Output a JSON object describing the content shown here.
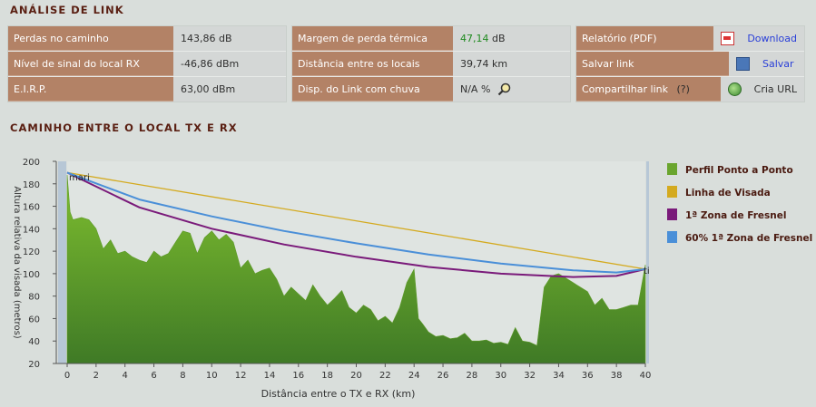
{
  "analise": {
    "title": "ANÁLISE DE LINK",
    "col1": [
      {
        "label": "Perdas no caminho",
        "value": "143,86 dB"
      },
      {
        "label": "Nível de sinal do local RX",
        "value": "-46,86 dBm"
      },
      {
        "label": "E.I.R.P.",
        "value": "63,00 dBm"
      }
    ],
    "col2": [
      {
        "label": "Margem de perda térmica",
        "value_num": "47,14",
        "value_unit": "dB"
      },
      {
        "label": "Distância entre os locais",
        "value": "39,74 km"
      },
      {
        "label": "Disp. do Link com chuva",
        "value": "N/A %"
      }
    ],
    "col3": [
      {
        "label": "Relatório (PDF)",
        "action": "Download"
      },
      {
        "label": "Salvar link",
        "action": "Salvar"
      },
      {
        "label": "Compartilhar link",
        "help": "(?)",
        "action": "Cria URL"
      }
    ]
  },
  "caminho": {
    "title": "CAMINHO ENTRE O LOCAL TX E RX"
  },
  "chart_data": {
    "type": "area",
    "xlabel": "Distância entre o TX e RX (km)",
    "ylabel": "Altura relativa da visada (metros)",
    "xlim": [
      0,
      40
    ],
    "ylim": [
      20,
      200
    ],
    "xticks": [
      "0",
      "2",
      "4",
      "6",
      "8",
      "10",
      "12",
      "14",
      "16",
      "18",
      "20",
      "22",
      "24",
      "26",
      "28",
      "30",
      "32",
      "34",
      "36",
      "38",
      "40"
    ],
    "yticks": [
      "20",
      "40",
      "60",
      "80",
      "100",
      "120",
      "140",
      "160",
      "180",
      "200"
    ],
    "tx_label": "mari",
    "rx_label": "ti",
    "legend": [
      {
        "name": "Perfil Ponto a Ponto",
        "color": "#6aa52e"
      },
      {
        "name": "Linha de Visada",
        "color": "#d4aa1f"
      },
      {
        "name": "1ª Zona de Fresnel",
        "color": "#7a1a7a"
      },
      {
        "name": "60% 1ª Zona de Fresnel",
        "color": "#4a8fd8"
      }
    ],
    "series": [
      {
        "name": "Perfil Ponto a Ponto",
        "x": [
          0,
          0.2,
          0.4,
          1,
          1.5,
          2,
          2.5,
          3,
          3.5,
          4,
          4.5,
          5,
          5.5,
          6,
          6.5,
          7,
          7.5,
          8,
          8.5,
          9,
          9.5,
          10,
          10.5,
          11,
          11.5,
          12,
          12.5,
          13,
          13.5,
          14,
          14.5,
          15,
          15.5,
          16,
          16.5,
          17,
          17.5,
          18,
          18.5,
          19,
          19.5,
          20,
          20.5,
          21,
          21.5,
          22,
          22.5,
          23,
          23.5,
          24,
          24.3,
          24.6,
          25,
          25.5,
          26,
          26.5,
          27,
          27.5,
          28,
          28.5,
          29,
          29.5,
          30,
          30.5,
          31,
          31.5,
          32,
          32.5,
          33,
          33.5,
          34,
          34.5,
          35,
          35.5,
          36,
          36.5,
          37,
          37.5,
          38,
          38.5,
          39,
          39.5,
          40
        ],
        "y": [
          188,
          155,
          148,
          150,
          148,
          140,
          122,
          130,
          118,
          120,
          115,
          112,
          110,
          120,
          115,
          118,
          128,
          138,
          136,
          118,
          132,
          138,
          130,
          135,
          128,
          105,
          112,
          100,
          103,
          105,
          95,
          80,
          88,
          82,
          76,
          90,
          80,
          72,
          78,
          85,
          70,
          65,
          72,
          68,
          58,
          62,
          56,
          70,
          92,
          104,
          60,
          55,
          48,
          44,
          45,
          42,
          43,
          47,
          40,
          40,
          41,
          38,
          39,
          37,
          52,
          40,
          39,
          36,
          88,
          98,
          100,
          96,
          92,
          88,
          84,
          72,
          78,
          68,
          68,
          70,
          72,
          72,
          108
        ]
      },
      {
        "name": "Linha de Visada",
        "x": [
          0,
          40
        ],
        "y": [
          190,
          104
        ]
      },
      {
        "name": "1ª Zona de Fresnel",
        "x": [
          0,
          5,
          10,
          15,
          20,
          25,
          30,
          35,
          38,
          40
        ],
        "y": [
          190,
          159,
          140,
          126,
          115,
          106,
          100,
          97,
          98,
          104
        ]
      },
      {
        "name": "60% 1ª Zona de Fresnel",
        "x": [
          0,
          5,
          10,
          15,
          20,
          25,
          30,
          35,
          38,
          40
        ],
        "y": [
          190,
          166,
          151,
          138,
          127,
          117,
          109,
          103,
          101,
          104
        ]
      }
    ]
  }
}
